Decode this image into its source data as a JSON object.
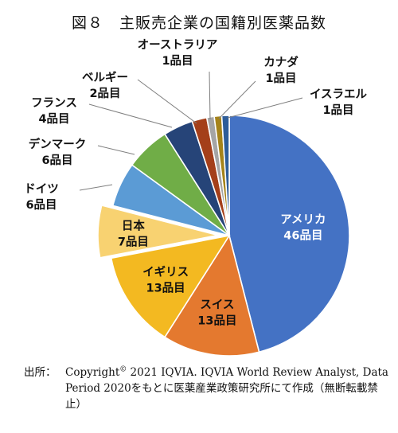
{
  "title": "図８　主販売企業の国籍別医薬品数",
  "source": {
    "label": "出所：",
    "text_before_mark": "Copyright",
    "copyright_mark": "©",
    "text_after_mark": " 2021 IQVIA. IQVIA World Review Analyst, Data Period 2020をもとに医薬産業政策研究所にて作成（無断転載禁止）"
  },
  "chart_data": {
    "type": "pie",
    "title": "図８　主販売企業の国籍別医薬品数",
    "start": "12 o'clock, clockwise",
    "exploded": [
      "日本"
    ],
    "slices": [
      {
        "name": "アメリカ",
        "value": 46,
        "label": "46品目",
        "color": "#4472C4",
        "label_position": "inside",
        "label_color": "#ffffff"
      },
      {
        "name": "スイス",
        "value": 13,
        "label": "13品目",
        "color": "#E4792F",
        "label_position": "inside",
        "label_color": "#111111"
      },
      {
        "name": "イギリス",
        "value": 13,
        "label": "13品目",
        "color": "#F3B921",
        "label_position": "inside",
        "label_color": "#111111"
      },
      {
        "name": "日本",
        "value": 7,
        "label": "7品目",
        "color": "#F8D271",
        "label_position": "inside",
        "label_color": "#111111"
      },
      {
        "name": "ドイツ",
        "value": 6,
        "label": "6品目",
        "color": "#5B9BD5",
        "label_position": "outside",
        "label_color": "#111111"
      },
      {
        "name": "デンマーク",
        "value": 6,
        "label": "6品目",
        "color": "#70AD47",
        "label_position": "outside",
        "label_color": "#111111"
      },
      {
        "name": "フランス",
        "value": 4,
        "label": "4品目",
        "color": "#264478",
        "label_position": "outside",
        "label_color": "#111111"
      },
      {
        "name": "ベルギー",
        "value": 2,
        "label": "2品目",
        "color": "#A43F1A",
        "label_position": "outside",
        "label_color": "#111111"
      },
      {
        "name": "オーストラリア",
        "value": 1,
        "label": "1品目",
        "color": "#A5A5A5",
        "label_position": "outside",
        "label_color": "#111111"
      },
      {
        "name": "カナダ",
        "value": 1,
        "label": "1品目",
        "color": "#A5831A",
        "label_position": "outside",
        "label_color": "#111111"
      },
      {
        "name": "イスラエル",
        "value": 1,
        "label": "1品目",
        "color": "#2E5D99",
        "label_position": "outside",
        "label_color": "#111111"
      }
    ]
  }
}
